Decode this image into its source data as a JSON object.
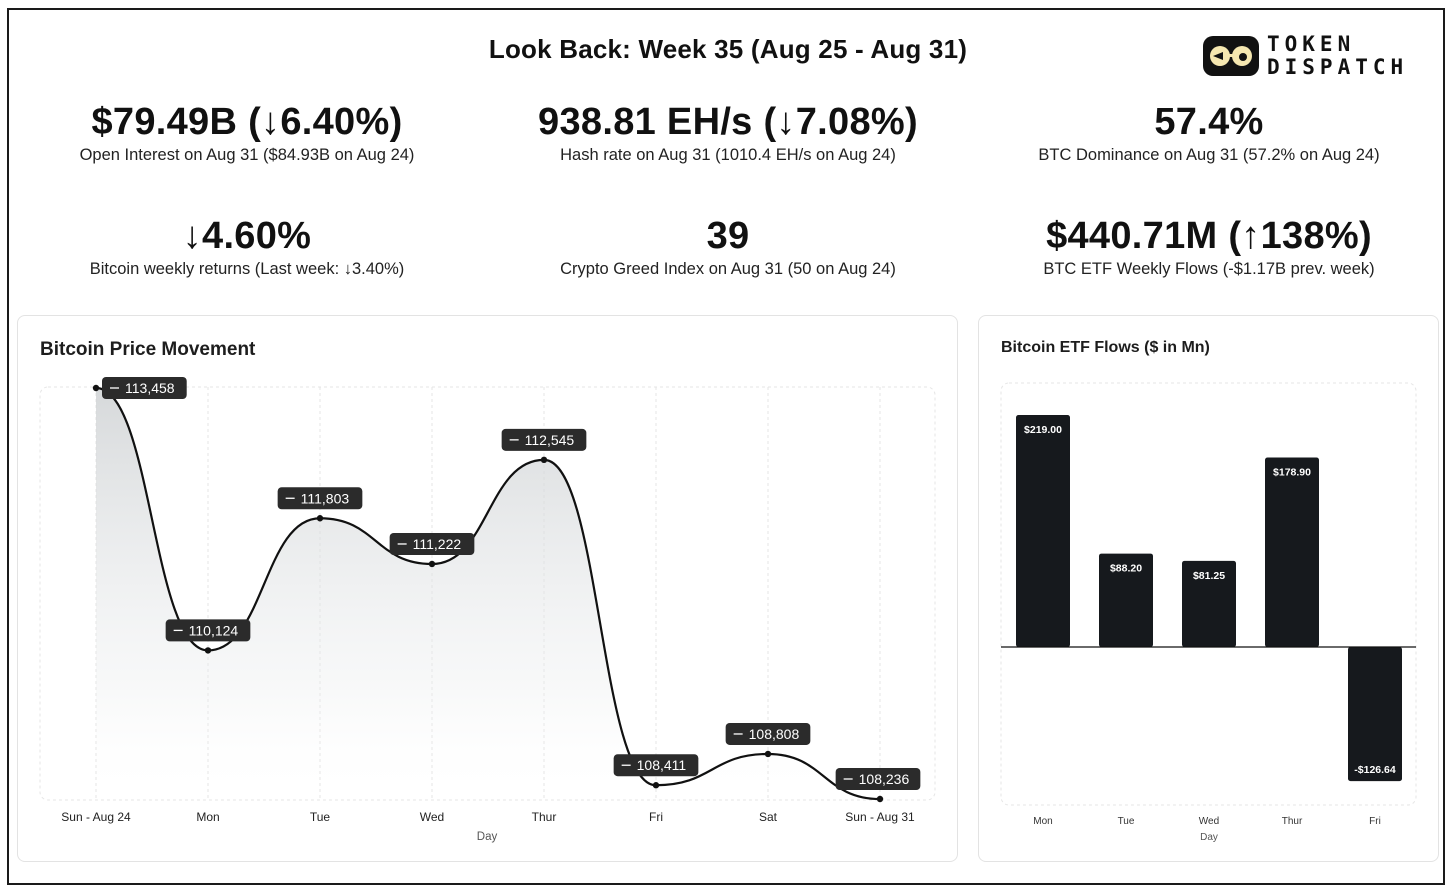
{
  "header": {
    "title": "Look Back: Week 35 (Aug 25 - Aug 31)",
    "logo_line1": "TOKEN",
    "logo_line2": "DISPATCH"
  },
  "stats": [
    {
      "value": "$79.49B (↓6.40%)",
      "label": "Open Interest on Aug 31 ($84.93B on Aug 24)"
    },
    {
      "value": "938.81 EH/s (↓7.08%)",
      "label": "Hash rate on Aug 31 (1010.4 EH/s on Aug 24)"
    },
    {
      "value": "57.4%",
      "label": "BTC Dominance on Aug 31 (57.2% on Aug 24)"
    },
    {
      "value": "↓4.60%",
      "label": "Bitcoin weekly returns (Last week: ↓3.40%)"
    },
    {
      "value": "39",
      "label": "Crypto Greed Index on Aug 31 (50 on Aug 24)"
    },
    {
      "value": "$440.71M (↑138%)",
      "label": "BTC ETF Weekly Flows (-$1.17B prev. week)"
    }
  ],
  "chart_data": [
    {
      "type": "area",
      "title": "Bitcoin Price Movement",
      "xlabel": "Day",
      "ylabel": "",
      "categories": [
        "Sun - Aug 24",
        "Mon",
        "Tue",
        "Wed",
        "Thur",
        "Fri",
        "Sat",
        "Sun - Aug 31"
      ],
      "values": [
        113458,
        110124,
        111803,
        111222,
        112545,
        108411,
        108808,
        108236
      ],
      "labels": [
        "113,458",
        "110,124",
        "111,803",
        "111,222",
        "112,545",
        "108,411",
        "108,808",
        "108,236"
      ],
      "ylim": [
        108236,
        113458
      ],
      "grid": true
    },
    {
      "type": "bar",
      "title": "Bitcoin ETF Flows ($ in Mn)",
      "xlabel": "Day",
      "ylabel": "",
      "categories": [
        "Mon",
        "Tue",
        "Wed",
        "Thur",
        "Fri"
      ],
      "values": [
        219.0,
        88.2,
        81.25,
        178.9,
        -126.64
      ],
      "labels": [
        "$219.00",
        "$88.20",
        "$81.25",
        "$178.90",
        "-$126.64"
      ],
      "ylim": [
        -150,
        219
      ],
      "grid": true
    }
  ],
  "colors": {
    "bar": "#16191d",
    "line": "#111111",
    "tooltip": "#2b2b2b"
  }
}
